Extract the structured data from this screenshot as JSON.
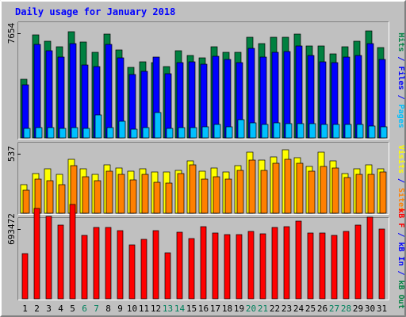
{
  "chart_data": {
    "type": "bar",
    "title": "Daily usage for January 2018",
    "categories": [
      "1",
      "2",
      "3",
      "4",
      "5",
      "6",
      "7",
      "8",
      "9",
      "10",
      "11",
      "12",
      "13",
      "14",
      "15",
      "16",
      "17",
      "18",
      "19",
      "20",
      "21",
      "22",
      "23",
      "24",
      "25",
      "26",
      "27",
      "28",
      "29",
      "30",
      "31"
    ],
    "weekend_days": [
      "6",
      "7",
      "13",
      "14",
      "20",
      "21",
      "27",
      "28"
    ],
    "panels": [
      {
        "y_max_label": "7654",
        "y_max": 7654,
        "labels_right": [
          {
            "text": "Hits",
            "color": "#008040"
          },
          {
            "text": " / ",
            "color": "#0000ff"
          },
          {
            "text": "Files",
            "color": "#0000ff"
          },
          {
            "text": " / ",
            "color": "#0000ff"
          },
          {
            "text": "Pages",
            "color": "#00c0ff"
          }
        ],
        "series": [
          {
            "name": "Hits",
            "color": "#008040",
            "values": [
              4300,
              7530,
              7090,
              6690,
              7790,
              7040,
              6250,
              7590,
              6460,
              5140,
              5560,
              5490,
              5210,
              6380,
              6050,
              5860,
              6680,
              6270,
              6260,
              7340,
              6910,
              7380,
              7360,
              7600,
              6750,
              6730,
              6150,
              6640,
              7070,
              7850,
              6610
            ]
          },
          {
            "name": "Files",
            "color": "#0000ff",
            "values": [
              3890,
              6870,
              6370,
              5920,
              6920,
              5310,
              5200,
              6850,
              5850,
              4620,
              4890,
              5910,
              4670,
              5520,
              5580,
              5390,
              5990,
              5720,
              5480,
              6570,
              5910,
              6270,
              6340,
              6720,
              6050,
              5590,
              5490,
              5930,
              6020,
              6920,
              5760
            ]
          },
          {
            "name": "Pages",
            "color": "#00c0ff",
            "values": [
              690,
              730,
              730,
              690,
              780,
              690,
              1690,
              760,
              1200,
              650,
              730,
              1870,
              690,
              730,
              750,
              820,
              960,
              800,
              1320,
              1130,
              1010,
              1120,
              1070,
              1050,
              1030,
              960,
              990,
              1010,
              1010,
              870,
              820
            ]
          }
        ]
      },
      {
        "y_max_label": "537",
        "y_max": 537,
        "labels_right": [
          {
            "text": "Visits",
            "color": "#ffff00"
          },
          {
            "text": " / ",
            "color": "#0000ff"
          },
          {
            "text": "Sites",
            "color": "#ff8000"
          }
        ],
        "series": [
          {
            "name": "Visits",
            "color": "#ffff00",
            "values": [
              260,
              360,
              400,
              350,
              490,
              400,
              350,
              440,
              410,
              380,
              400,
              370,
              370,
              390,
              470,
              380,
              410,
              370,
              430,
              550,
              480,
              510,
              570,
              500,
              420,
              550,
              470,
              360,
              400,
              440,
              400
            ]
          },
          {
            "name": "Sites",
            "color": "#ff8000",
            "values": [
              210,
              310,
              290,
              260,
              430,
              330,
              290,
              380,
              350,
              300,
              350,
              280,
              270,
              360,
              440,
              310,
              330,
              310,
              390,
              480,
              390,
              450,
              490,
              450,
              380,
              420,
              410,
              320,
              350,
              350,
              370
            ]
          }
        ]
      },
      {
        "y_max_label": "693472",
        "y_max": 693472,
        "labels_right": [
          {
            "text": "kB F",
            "color": "#ff0000"
          },
          {
            "text": " / ",
            "color": "#0000ff"
          },
          {
            "text": "kB In",
            "color": "#0000ff"
          },
          {
            "text": " / ",
            "color": "#0000ff"
          },
          {
            "text": "kB Out",
            "color": "#008040"
          }
        ],
        "series": [
          {
            "name": "kB F",
            "color": "#ff0000",
            "values": [
              446000,
              900000,
              819000,
              733000,
              938000,
              628000,
              707000,
              707000,
              679000,
              532000,
              591000,
              675000,
              457000,
              659000,
              601000,
              721000,
              654000,
              638000,
              642000,
              667000,
              648000,
              707000,
              721000,
              770000,
              654000,
              656000,
              634000,
              667000,
              730000,
              812000,
              697000
            ]
          }
        ]
      }
    ],
    "colors": {
      "background": "#c0c0c0",
      "frame": "#808080",
      "title": "#0000ff",
      "day_label": "#000000",
      "weekend_label": "#00805c"
    }
  }
}
